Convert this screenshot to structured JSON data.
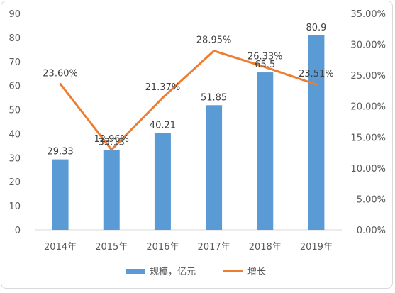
{
  "chart_data": {
    "type": "bar+line",
    "categories": [
      "2014年",
      "2015年",
      "2016年",
      "2017年",
      "2018年",
      "2019年"
    ],
    "series": [
      {
        "name": "规模，亿元",
        "type": "bar",
        "axis": "left",
        "values": [
          29.33,
          33.13,
          40.21,
          51.85,
          65.5,
          80.9
        ],
        "labels": [
          "29.33",
          "33.13",
          "40.21",
          "51.85",
          "65.5",
          "80.9"
        ],
        "color": "#5b9bd5"
      },
      {
        "name": "增长",
        "type": "line",
        "axis": "right",
        "values": [
          23.6,
          12.96,
          21.37,
          28.95,
          26.33,
          23.51
        ],
        "labels": [
          "23.60%",
          "12.96%",
          "21.37%",
          "28.95%",
          "26.33%",
          "23.51%"
        ],
        "color": "#ed7d31"
      }
    ],
    "left_axis": {
      "ylim": [
        0,
        90
      ],
      "ticks": [
        "0",
        "10",
        "20",
        "30",
        "40",
        "50",
        "60",
        "70",
        "80",
        "90"
      ]
    },
    "right_axis": {
      "ylim": [
        0,
        35
      ],
      "ticks": [
        "0.00%",
        "5.00%",
        "10.00%",
        "15.00%",
        "20.00%",
        "25.00%",
        "30.00%",
        "35.00%"
      ]
    },
    "grid": false,
    "legend_position": "bottom"
  }
}
